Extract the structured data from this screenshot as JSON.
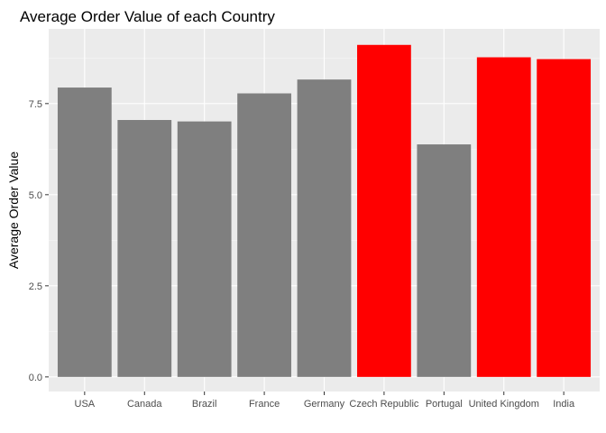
{
  "chart_data": {
    "type": "bar",
    "title": "Average Order Value of each Country",
    "xlabel": "",
    "ylabel": "Average Order Value",
    "categories": [
      "USA",
      "Canada",
      "Brazil",
      "France",
      "Germany",
      "Czech Republic",
      "Portugal",
      "United Kingdom",
      "India"
    ],
    "values": [
      7.94,
      7.05,
      7.01,
      7.78,
      8.16,
      9.11,
      6.38,
      8.77,
      8.72
    ],
    "ylim": [
      -0.4,
      9.55
    ],
    "yticks": [
      0.0,
      2.5,
      5.0,
      7.5
    ],
    "ytick_labels": [
      "0.0",
      "2.5",
      "5.0",
      "7.5"
    ],
    "grid": true,
    "colors": {
      "panel": "#ebebeb",
      "grid_major": "#ffffff",
      "grid_minor": "#f5f5f5",
      "default_bar": "#7f7f7f",
      "highlight_bar": "#ff0000"
    },
    "highlighted": [
      "Czech Republic",
      "United Kingdom",
      "India"
    ]
  }
}
